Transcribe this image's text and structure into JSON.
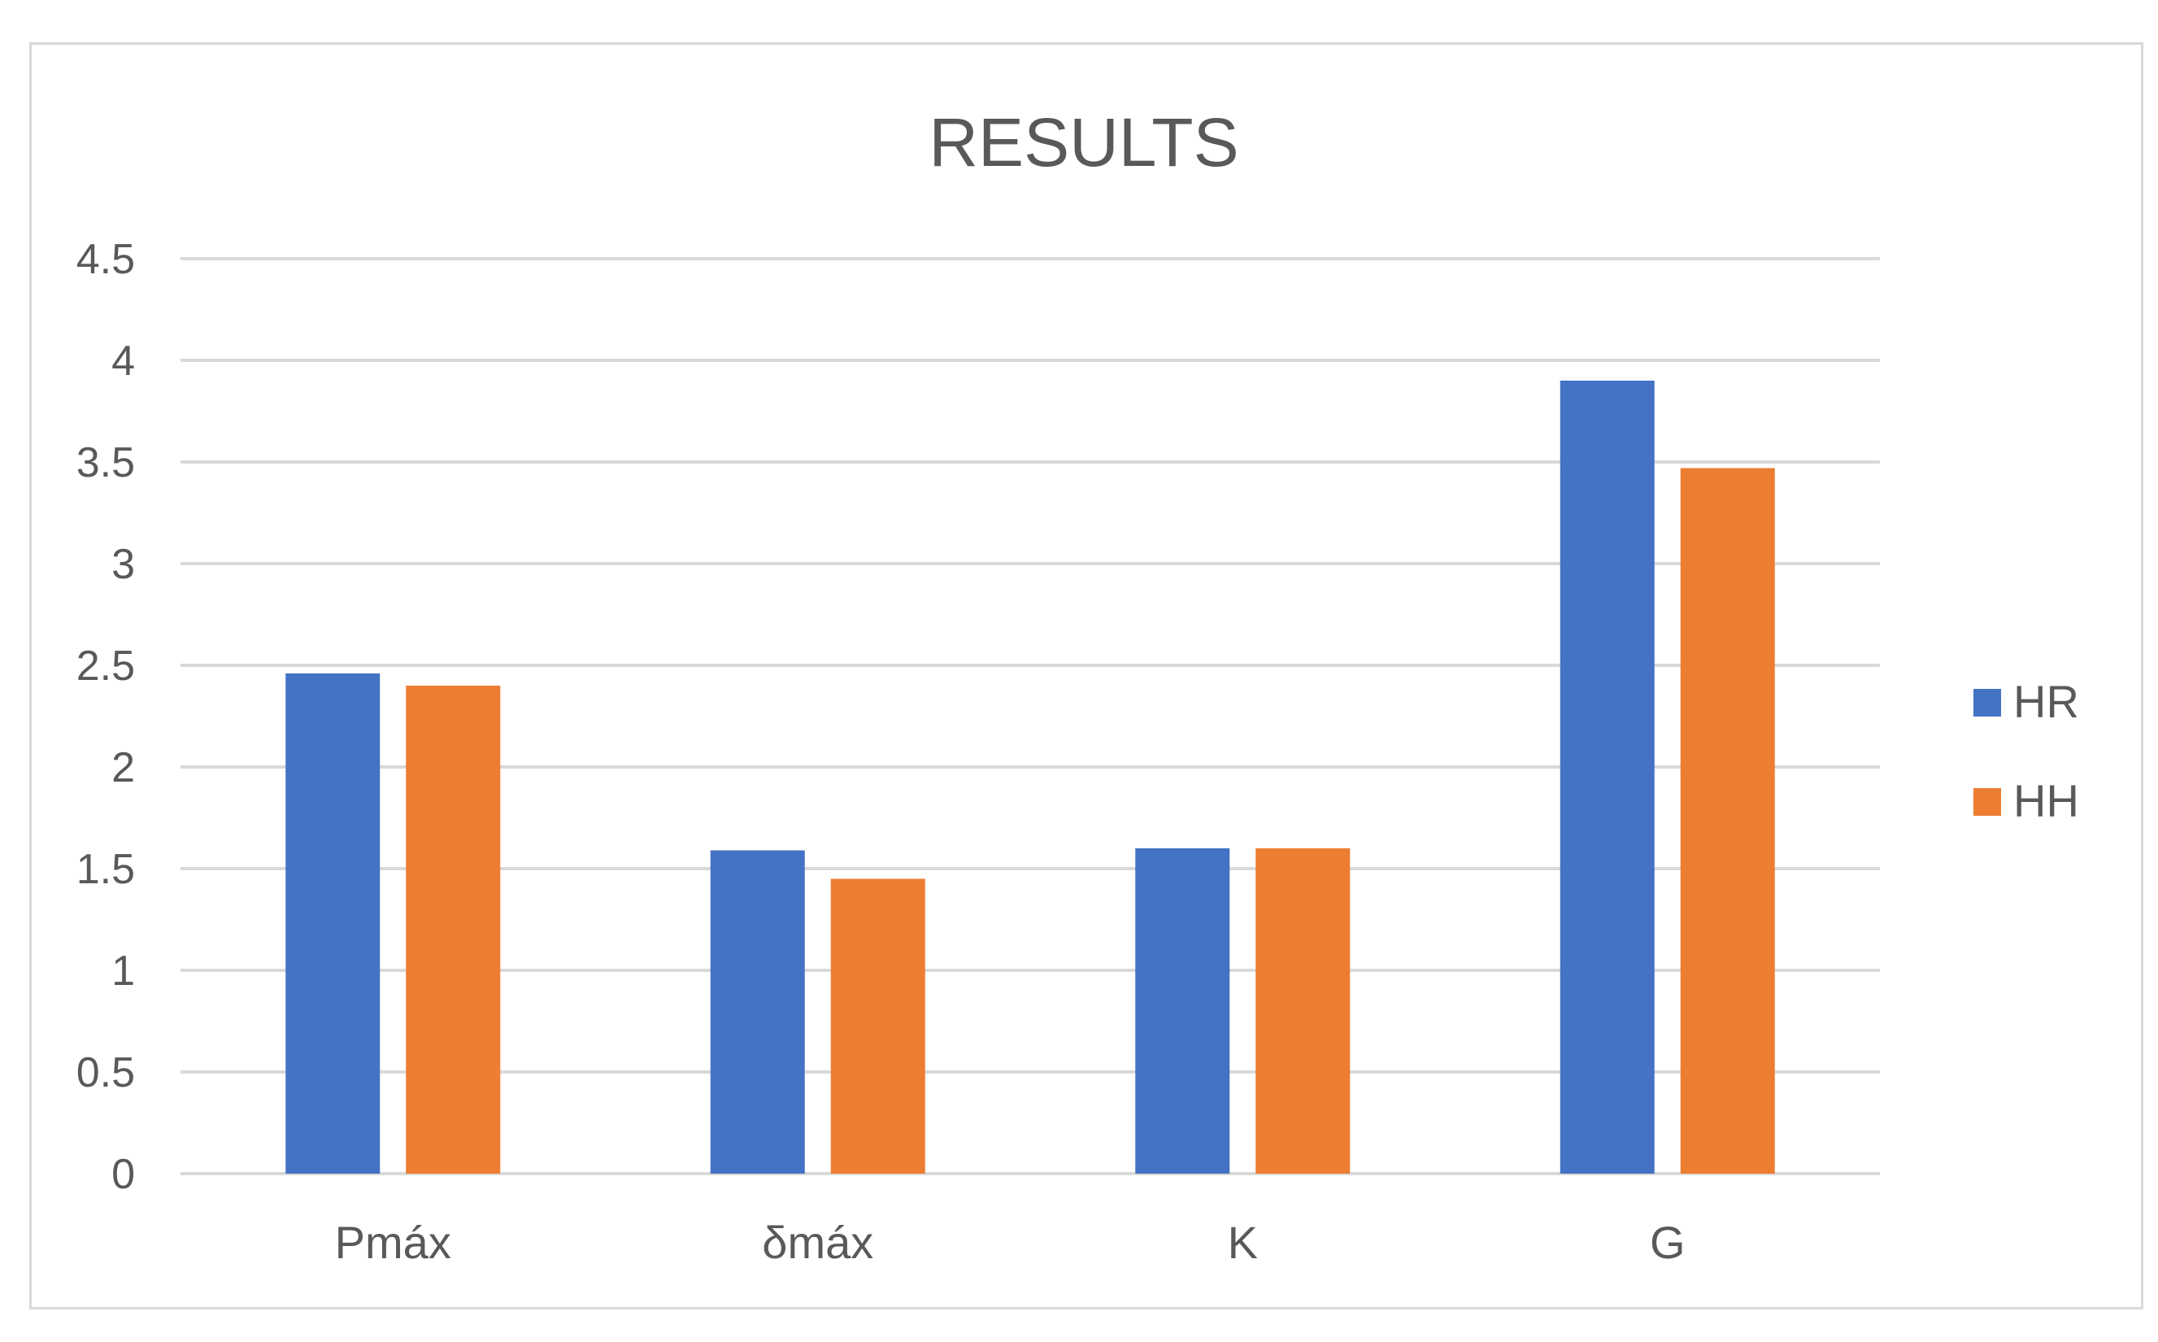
{
  "chart_data": {
    "type": "bar",
    "title": "RESULTS",
    "categories": [
      "Pmáx",
      "δmáx",
      "K",
      "G"
    ],
    "series": [
      {
        "name": "HR",
        "values": [
          2.46,
          1.59,
          1.6,
          3.9
        ],
        "color": "#4472C4"
      },
      {
        "name": "HH",
        "values": [
          2.4,
          1.45,
          1.6,
          3.47
        ],
        "color": "#ED7D31"
      }
    ],
    "ylim": [
      0,
      4.5
    ],
    "yticks": [
      "0",
      "0.5",
      "1",
      "1.5",
      "2",
      "2.5",
      "3",
      "3.5",
      "4",
      "4.5"
    ],
    "grid": true,
    "legend_position": "right",
    "gridline_color": "#d9d9d9"
  }
}
